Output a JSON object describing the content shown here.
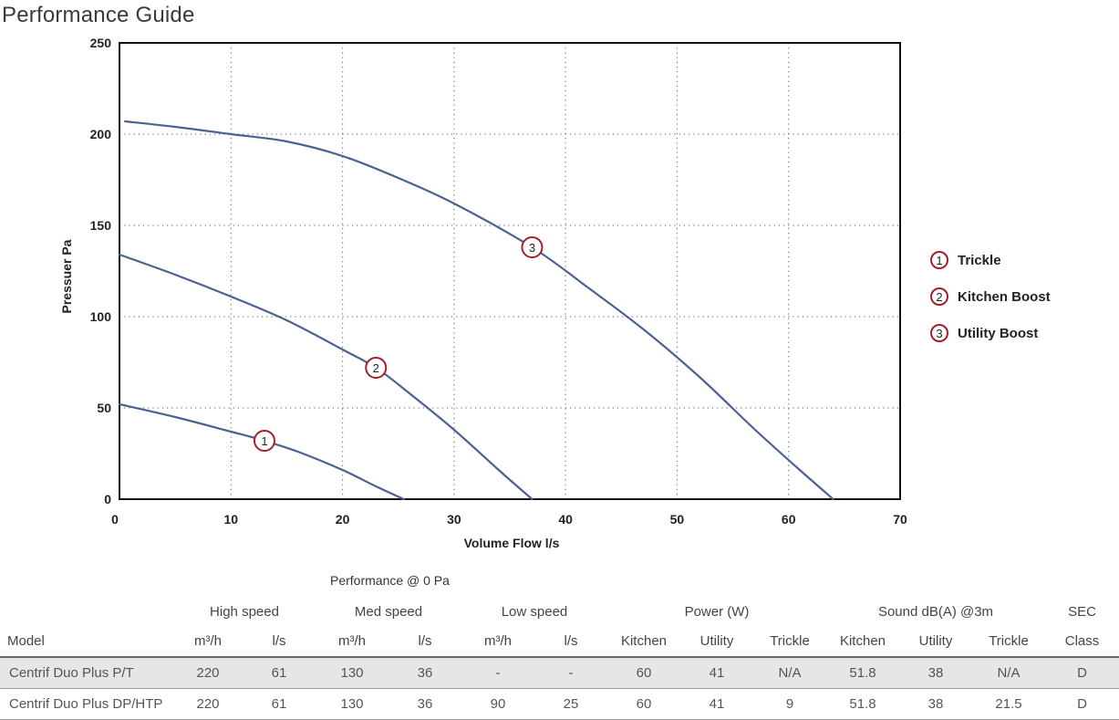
{
  "page_title": "Performance Guide",
  "chart_data": {
    "type": "line",
    "xlabel": "Volume Flow l/s",
    "ylabel": "Pressuer Pa",
    "xlim": [
      0,
      70
    ],
    "ylim": [
      0,
      250
    ],
    "x_ticks": [
      "0",
      "10",
      "20",
      "30",
      "40",
      "50",
      "60",
      "70"
    ],
    "y_ticks": [
      "0",
      "50",
      "100",
      "150",
      "200",
      "250"
    ],
    "grid": "dotted",
    "legend_position": "right",
    "line_color": "#4a6291",
    "marker_color": "#a51e2a",
    "series": [
      {
        "name": "Trickle",
        "marker_label": "1",
        "marker_at": [
          13,
          32
        ],
        "x": [
          0,
          5,
          10,
          13,
          16,
          20,
          23,
          25.5
        ],
        "y": [
          52,
          45,
          37,
          32,
          26,
          16,
          7,
          0
        ]
      },
      {
        "name": "Kitchen Boost",
        "marker_label": "2",
        "marker_at": [
          23,
          72
        ],
        "x": [
          0,
          5,
          10,
          15,
          20,
          23,
          26,
          30,
          34,
          37
        ],
        "y": [
          134,
          123,
          111,
          98,
          82,
          72,
          58,
          38,
          16,
          0
        ]
      },
      {
        "name": "Utility Boost",
        "marker_label": "3",
        "marker_at": [
          37,
          138
        ],
        "x": [
          0.5,
          5,
          10,
          15,
          20,
          25,
          30,
          37,
          42,
          47,
          52,
          57,
          61,
          64
        ],
        "y": [
          207,
          204,
          200,
          196,
          188,
          176,
          162,
          138,
          116,
          93,
          67,
          38,
          16,
          0
        ]
      }
    ]
  },
  "table": {
    "caption": "Performance @ 0 Pa",
    "groups": [
      "High speed",
      "Med speed",
      "Low speed",
      "Power (W)",
      "Sound dB(A) @3m",
      "SEC"
    ],
    "units": [
      "Model",
      "m³/h",
      "l/s",
      "m³/h",
      "l/s",
      "m³/h",
      "l/s",
      "Kitchen",
      "Utility",
      "Trickle",
      "Kitchen",
      "Utility",
      "Trickle",
      "Class"
    ],
    "rows": [
      [
        "Centrif Duo Plus P/T",
        "220",
        "61",
        "130",
        "36",
        "-",
        "-",
        "60",
        "41",
        "N/A",
        "51.8",
        "38",
        "N/A",
        "D"
      ],
      [
        "Centrif Duo Plus DP/HTP",
        "220",
        "61",
        "130",
        "36",
        "90",
        "25",
        "60",
        "41",
        "9",
        "51.8",
        "38",
        "21.5",
        "D"
      ]
    ]
  }
}
